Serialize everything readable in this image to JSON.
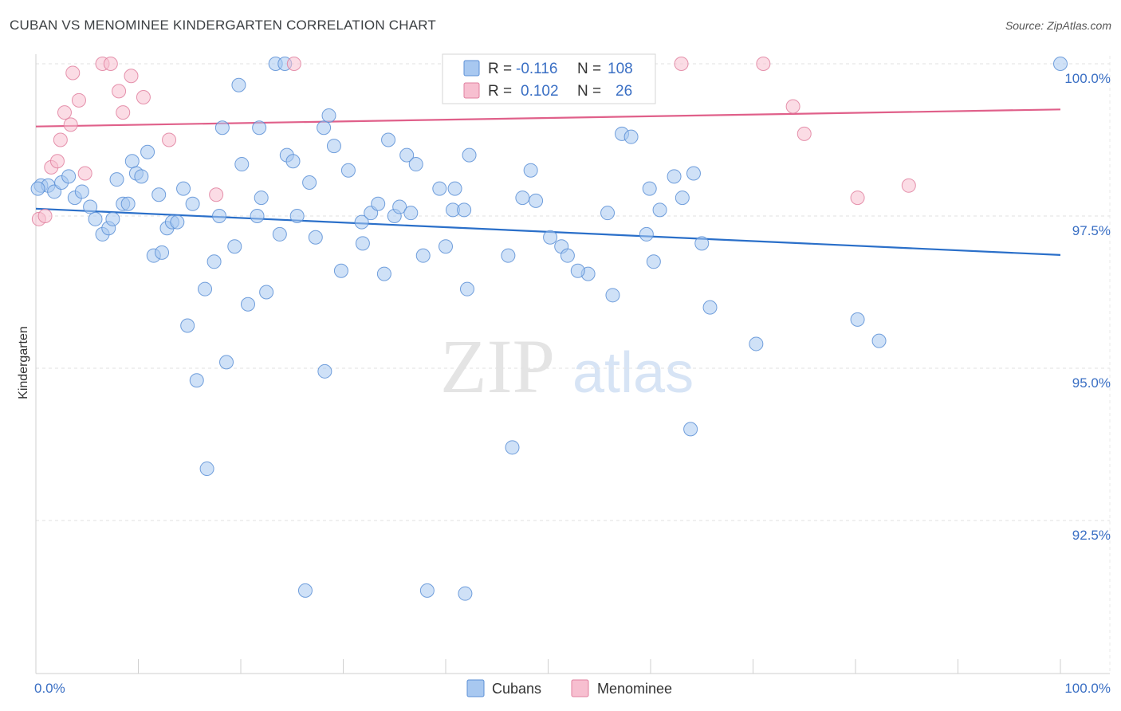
{
  "title": "CUBAN VS MENOMINEE KINDERGARTEN CORRELATION CHART",
  "source": "Source: ZipAtlas.com",
  "watermark": {
    "zip": "ZIP",
    "atlas": "atlas"
  },
  "legend": {
    "rows": [
      {
        "r_label": "R =",
        "r_value": "-0.116",
        "n_label": "N =",
        "n_value": "108",
        "color": "#a8c8f0",
        "stroke": "#5b8fd6"
      },
      {
        "r_label": "R =",
        "r_value": "0.102",
        "n_label": "N =",
        "n_value": "26",
        "color": "#f7bfd0",
        "stroke": "#e0809f"
      }
    ]
  },
  "bottom_legend": [
    {
      "label": "Cubans",
      "color": "#a8c8f0",
      "stroke": "#5b8fd6"
    },
    {
      "label": "Menominee",
      "color": "#f7bfd0",
      "stroke": "#e0809f"
    }
  ],
  "chart_data": {
    "type": "scatter",
    "title": "CUBAN VS MENOMINEE KINDERGARTEN CORRELATION CHART",
    "xlabel": "",
    "ylabel": "Kindergarten",
    "xlim": [
      0,
      100
    ],
    "ylim": [
      90.0,
      100.5
    ],
    "x_tick_labels": [
      "0.0%",
      "100.0%"
    ],
    "y_ticks": [
      92.5,
      95.0,
      97.5,
      100.0
    ],
    "y_tick_labels": [
      "92.5%",
      "95.0%",
      "97.5%",
      "100.0%"
    ],
    "grid": true,
    "series": [
      {
        "name": "Cubans",
        "color": "#5b8fd6",
        "fill": "#a8c8f0",
        "trend": {
          "x": [
            0,
            100
          ],
          "y": [
            97.62,
            96.86
          ]
        },
        "points": [
          [
            0.5,
            98.0
          ],
          [
            1.2,
            98.0
          ],
          [
            1.8,
            97.9
          ],
          [
            2.5,
            98.05
          ],
          [
            3.2,
            98.15
          ],
          [
            3.8,
            97.8
          ],
          [
            4.5,
            97.9
          ],
          [
            5.3,
            97.65
          ],
          [
            5.8,
            97.45
          ],
          [
            6.5,
            97.2
          ],
          [
            7.1,
            97.3
          ],
          [
            7.5,
            97.45
          ],
          [
            7.9,
            98.1
          ],
          [
            8.5,
            97.7
          ],
          [
            9.0,
            97.7
          ],
          [
            9.4,
            98.4
          ],
          [
            9.8,
            98.2
          ],
          [
            10.3,
            98.15
          ],
          [
            10.9,
            98.55
          ],
          [
            11.5,
            96.85
          ],
          [
            12.0,
            97.85
          ],
          [
            12.3,
            96.9
          ],
          [
            12.8,
            97.3
          ],
          [
            13.3,
            97.4
          ],
          [
            13.8,
            97.4
          ],
          [
            14.4,
            97.95
          ],
          [
            14.8,
            95.7
          ],
          [
            15.3,
            97.7
          ],
          [
            15.7,
            94.8
          ],
          [
            16.5,
            96.3
          ],
          [
            16.7,
            93.35
          ],
          [
            17.4,
            96.75
          ],
          [
            18.2,
            98.95
          ],
          [
            18.6,
            95.1
          ],
          [
            19.4,
            97.0
          ],
          [
            19.8,
            99.65
          ],
          [
            20.1,
            98.35
          ],
          [
            20.7,
            96.05
          ],
          [
            21.6,
            97.5
          ],
          [
            21.8,
            98.95
          ],
          [
            22.0,
            97.8
          ],
          [
            22.5,
            96.25
          ],
          [
            23.4,
            100.0
          ],
          [
            23.8,
            97.2
          ],
          [
            24.3,
            100.0
          ],
          [
            24.5,
            98.5
          ],
          [
            25.1,
            98.4
          ],
          [
            25.5,
            97.5
          ],
          [
            26.3,
            91.35
          ],
          [
            26.7,
            98.05
          ],
          [
            27.3,
            97.15
          ],
          [
            28.1,
            98.95
          ],
          [
            28.2,
            94.95
          ],
          [
            28.6,
            99.15
          ],
          [
            29.1,
            98.65
          ],
          [
            29.8,
            96.6
          ],
          [
            30.5,
            98.25
          ],
          [
            31.8,
            97.4
          ],
          [
            31.9,
            97.05
          ],
          [
            32.7,
            97.55
          ],
          [
            33.4,
            97.7
          ],
          [
            34.0,
            96.55
          ],
          [
            34.4,
            98.75
          ],
          [
            35.0,
            97.5
          ],
          [
            35.5,
            97.65
          ],
          [
            36.2,
            98.5
          ],
          [
            37.1,
            98.35
          ],
          [
            37.8,
            96.85
          ],
          [
            38.2,
            91.35
          ],
          [
            39.4,
            97.95
          ],
          [
            40.0,
            97.0
          ],
          [
            40.7,
            97.6
          ],
          [
            40.9,
            97.95
          ],
          [
            41.8,
            97.6
          ],
          [
            41.9,
            91.3
          ],
          [
            42.1,
            96.3
          ],
          [
            42.3,
            98.5
          ],
          [
            46.1,
            96.85
          ],
          [
            46.5,
            93.7
          ],
          [
            47.5,
            97.8
          ],
          [
            48.3,
            98.25
          ],
          [
            48.8,
            97.75
          ],
          [
            50.2,
            97.15
          ],
          [
            51.3,
            97.0
          ],
          [
            51.9,
            96.85
          ],
          [
            53.9,
            96.55
          ],
          [
            55.8,
            97.55
          ],
          [
            56.3,
            96.2
          ],
          [
            57.2,
            98.85
          ],
          [
            58.1,
            98.8
          ],
          [
            59.6,
            97.2
          ],
          [
            59.9,
            97.95
          ],
          [
            60.3,
            96.75
          ],
          [
            60.9,
            97.6
          ],
          [
            62.3,
            98.15
          ],
          [
            63.1,
            97.8
          ],
          [
            63.9,
            94.0
          ],
          [
            64.2,
            98.2
          ],
          [
            65.0,
            97.05
          ],
          [
            65.8,
            96.0
          ],
          [
            70.3,
            95.4
          ],
          [
            80.2,
            95.8
          ],
          [
            82.3,
            95.45
          ],
          [
            100.0,
            100.0
          ],
          [
            0.2,
            97.95
          ],
          [
            17.9,
            97.5
          ],
          [
            36.6,
            97.55
          ],
          [
            52.9,
            96.6
          ]
        ]
      },
      {
        "name": "Menominee",
        "color": "#e0809f",
        "fill": "#f7bfd0",
        "trend": {
          "x": [
            0,
            100
          ],
          "y": [
            98.97,
            99.25
          ]
        },
        "points": [
          [
            0.3,
            97.45
          ],
          [
            0.9,
            97.5
          ],
          [
            1.5,
            98.3
          ],
          [
            2.1,
            98.4
          ],
          [
            2.4,
            98.75
          ],
          [
            2.8,
            99.2
          ],
          [
            3.4,
            99.0
          ],
          [
            3.6,
            99.85
          ],
          [
            4.2,
            99.4
          ],
          [
            4.8,
            98.2
          ],
          [
            6.5,
            100.0
          ],
          [
            7.3,
            100.0
          ],
          [
            8.1,
            99.55
          ],
          [
            8.5,
            99.2
          ],
          [
            9.3,
            99.8
          ],
          [
            10.5,
            99.45
          ],
          [
            13.0,
            98.75
          ],
          [
            17.6,
            97.85
          ],
          [
            25.2,
            100.0
          ],
          [
            50.7,
            100.0
          ],
          [
            63.0,
            100.0
          ],
          [
            71.0,
            100.0
          ],
          [
            73.9,
            99.3
          ],
          [
            75.0,
            98.85
          ],
          [
            80.2,
            97.8
          ],
          [
            85.2,
            98.0
          ]
        ]
      }
    ]
  }
}
